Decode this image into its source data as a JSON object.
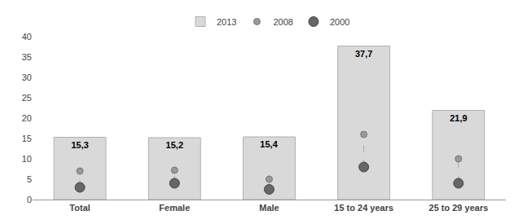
{
  "chart_data": {
    "type": "bar",
    "categories": [
      "Total",
      "Female",
      "Male",
      "15 to 24 years",
      "25 to 29 years"
    ],
    "series": [
      {
        "name": "2013",
        "type": "bar",
        "color": "#d9d9d9",
        "values": [
          15.3,
          15.2,
          15.4,
          37.7,
          21.9
        ],
        "value_labels": [
          "15,3",
          "15,2",
          "15,4",
          "37,7",
          "21,9"
        ]
      },
      {
        "name": "2008",
        "type": "scatter",
        "marker": "circle",
        "color": "#999999",
        "values": [
          7.0,
          7.2,
          5.0,
          16.0,
          10.0
        ]
      },
      {
        "name": "2000",
        "type": "scatter",
        "marker": "circle",
        "color": "#666666",
        "values": [
          3.0,
          4.0,
          2.5,
          8.0,
          4.0
        ]
      }
    ],
    "ylim": [
      0,
      40
    ],
    "yticks": [
      0,
      5,
      10,
      15,
      20,
      25,
      30,
      35,
      40
    ],
    "grid": false,
    "legend": "top",
    "data_labels": true
  }
}
